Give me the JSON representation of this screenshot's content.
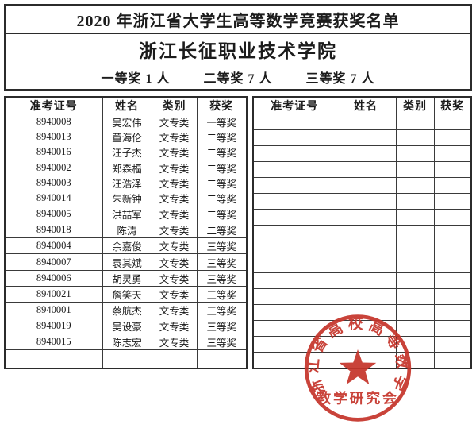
{
  "header": {
    "title": "2020 年浙江省大学生高等数学竞赛获奖名单",
    "school": "浙江长征职业技术学院",
    "summary": [
      "一等奖 1 人",
      "二等奖 7 人",
      "三等奖 7 人"
    ]
  },
  "left_table": {
    "headers": [
      "准考证号",
      "姓名",
      "类别",
      "获奖"
    ],
    "rows": [
      {
        "id": "8940008",
        "name": "吴宏伟",
        "category": "文专类",
        "award": "一等奖",
        "grouped": false
      },
      {
        "id": "8940013",
        "name": "董海伦",
        "category": "文专类",
        "award": "二等奖",
        "grouped": true
      },
      {
        "id": "8940016",
        "name": "汪子杰",
        "category": "文专类",
        "award": "二等奖",
        "grouped": true
      },
      {
        "id": "8940002",
        "name": "郑森楅",
        "category": "文专类",
        "award": "二等奖",
        "grouped": false
      },
      {
        "id": "8940003",
        "name": "汪浩泽",
        "category": "文专类",
        "award": "二等奖",
        "grouped": true
      },
      {
        "id": "8940014",
        "name": "朱新钟",
        "category": "文专类",
        "award": "二等奖",
        "grouped": true
      },
      {
        "id": "8940005",
        "name": "洪喆军",
        "category": "文专类",
        "award": "二等奖",
        "grouped": false
      },
      {
        "id": "8940018",
        "name": "陈涛",
        "category": "文专类",
        "award": "二等奖",
        "grouped": false
      },
      {
        "id": "8940004",
        "name": "余嘉俊",
        "category": "文专类",
        "award": "三等奖",
        "grouped": false
      },
      {
        "id": "8940007",
        "name": "袁其斌",
        "category": "文专类",
        "award": "三等奖",
        "grouped": false
      },
      {
        "id": "8940006",
        "name": "胡灵勇",
        "category": "文专类",
        "award": "三等奖",
        "grouped": false
      },
      {
        "id": "8940021",
        "name": "詹笑天",
        "category": "文专类",
        "award": "三等奖",
        "grouped": false
      },
      {
        "id": "8940001",
        "name": "蔡航杰",
        "category": "文专类",
        "award": "三等奖",
        "grouped": false
      },
      {
        "id": "8940019",
        "name": "吴设豪",
        "category": "文专类",
        "award": "三等奖",
        "grouped": false
      },
      {
        "id": "8940015",
        "name": "陈志宏",
        "category": "文专类",
        "award": "三等奖",
        "grouped": false
      }
    ],
    "trailing_empty_rows": 1
  },
  "right_table": {
    "headers": [
      "准考证号",
      "姓名",
      "类别",
      "获奖"
    ],
    "empty_row_count": 16
  },
  "stamp": {
    "arc_text": "浙江省高校高等数学",
    "bottom_text": "教学研究会",
    "star_icon": "five-pointed-star",
    "color": "#c5342a"
  },
  "colors": {
    "border_dark": "#2b2b2b",
    "grid_line": "#3a3a3a",
    "text": "#1c1c1c",
    "stamp_red": "#c5342a"
  }
}
